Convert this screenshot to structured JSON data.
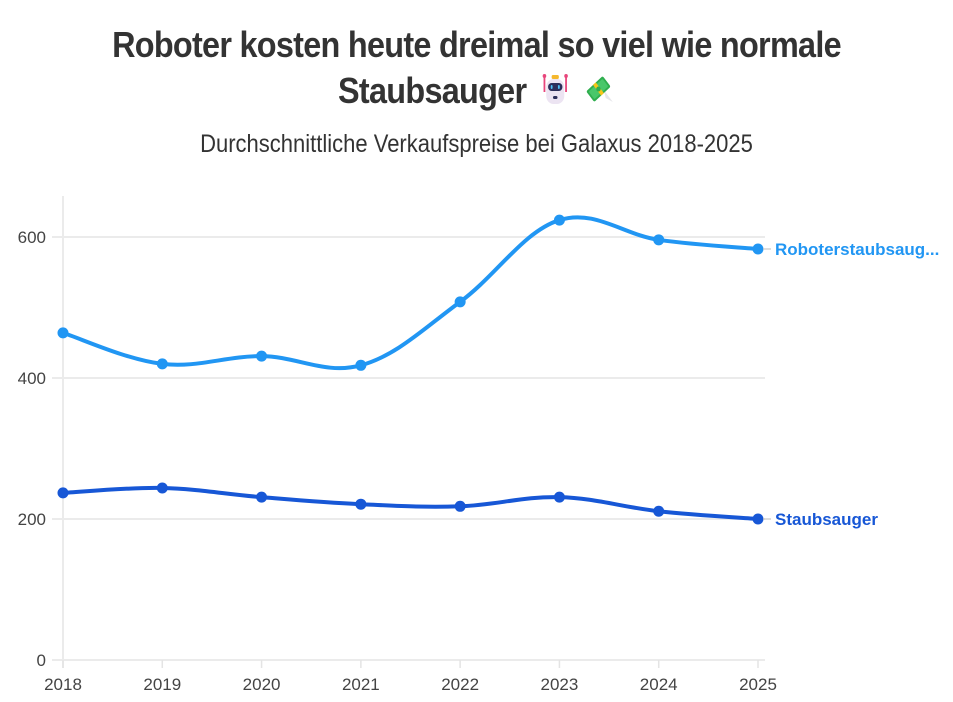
{
  "header": {
    "title_line1": "Roboter kosten heute dreimal so viel wie normale",
    "title_line2": "Staubsauger",
    "title_icons": [
      "robot-emoji",
      "money-with-wings-emoji"
    ],
    "subtitle": "Durchschnittliche Verkaufspreise bei Galaxus 2018-2025"
  },
  "chart_data": {
    "type": "line",
    "title": "Roboter kosten heute dreimal so viel wie normale Staubsauger",
    "subtitle": "Durchschnittliche Verkaufspreise bei Galaxus 2018-2025",
    "xlabel": "",
    "ylabel": "",
    "x": [
      "2018",
      "2019",
      "2020",
      "2021",
      "2022",
      "2023",
      "2024",
      "2025"
    ],
    "ylim": [
      0,
      660
    ],
    "yticks": [
      0,
      200,
      400,
      600
    ],
    "grid": true,
    "legend": "direct labels at line ends (right)",
    "series": [
      {
        "name": "Roboterstaubsauger",
        "label": "Roboterstaubsaug...",
        "color": "#2196F3",
        "values": [
          464,
          420,
          431,
          418,
          508,
          624,
          596,
          583
        ]
      },
      {
        "name": "Staubsauger",
        "label": "Staubsauger",
        "color": "#1757D6",
        "values": [
          237,
          244,
          231,
          221,
          218,
          231,
          211,
          200
        ]
      }
    ]
  }
}
